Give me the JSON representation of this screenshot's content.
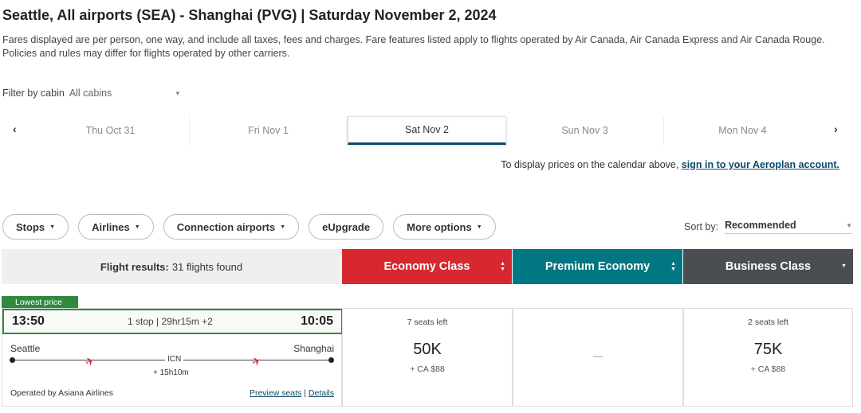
{
  "header": {
    "title": "Seattle, All airports (SEA) - Shanghai (PVG)  |  Saturday November 2, 2024",
    "disclaimer": "Fares displayed are per person, one way, and include all taxes, fees and charges. Fare features listed apply to flights operated by Air Canada, Air Canada Express and Air Canada Rouge. Policies and rules may differ for flights operated by other carriers."
  },
  "filter": {
    "label": "Filter by cabin",
    "value": "All cabins"
  },
  "dates": {
    "prev": "‹",
    "next": "›",
    "tabs": [
      {
        "label": "Thu Oct 31"
      },
      {
        "label": "Fri Nov 1"
      },
      {
        "label": "Sat Nov 2"
      },
      {
        "label": "Sun Nov 3"
      },
      {
        "label": "Mon Nov 4"
      }
    ],
    "active_index": 2
  },
  "signin": {
    "text": "To display prices on the calendar above, ",
    "link": "sign in to your Aeroplan account."
  },
  "chips": {
    "stops": "Stops",
    "airlines": "Airlines",
    "connection": "Connection airports",
    "eupgrade": "eUpgrade",
    "more": "More options"
  },
  "sort": {
    "label": "Sort by:",
    "value": "Recommended"
  },
  "results": {
    "label": "Flight results:",
    "count": "31 flights found"
  },
  "cabins": {
    "economy": "Economy Class",
    "premium": "Premium Economy",
    "business": "Business Class",
    "colors": {
      "economy": "#d7282f",
      "premium": "#007782",
      "business": "#4a4e53"
    }
  },
  "flight": {
    "badge": "Lowest price",
    "depart": "13:50",
    "arrive": "10:05",
    "summary": "1 stop | 29hr15m +2",
    "origin": "Seattle",
    "destination": "Shanghai",
    "stop_code": "ICN",
    "layover": "+ 15h10m",
    "operated": "Operated by Asiana Airlines",
    "preview": "Preview seats",
    "sep": "|",
    "details": "Details",
    "plane_icon": "airplane-icon"
  },
  "fares": {
    "economy": {
      "seats": "7 seats left",
      "points": "50K",
      "cash": "+ CA $88"
    },
    "premium": {
      "dash": "—"
    },
    "business": {
      "seats": "2 seats left",
      "points": "75K",
      "cash": "+ CA $88"
    }
  }
}
